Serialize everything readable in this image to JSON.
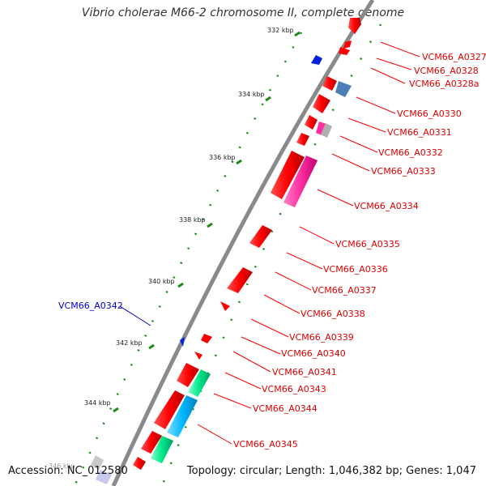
{
  "title": "Vibrio cholerae M66-2 chromosome II, complete genome",
  "accession": "Accession: NC_012580",
  "summary": "Topology: circular; Length: 1,046,382 bp; Genes: 1,047",
  "colors": {
    "backbone": "#8a8a8a",
    "forward_gene": "#ff0000",
    "reverse_gene_label": "#0000cc",
    "tick": "#1a8a1a",
    "pink": "#ff2fa0",
    "teal": "#00e88a",
    "cyan": "#00b8ff",
    "steel": "#4a7fb8",
    "grey_box": "#b0b0b0"
  },
  "scale_labels": [
    "332 kbp",
    "334 kbp",
    "336 kbp",
    "338 kbp",
    "340 kbp",
    "342 kbp",
    "344 kbp",
    "346 kbp"
  ],
  "gene_labels_right": [
    "VCM66_A0327",
    "VCM66_A0328",
    "VCM66_A0328a",
    "VCM66_A0330",
    "VCM66_A0331",
    "VCM66_A0332",
    "VCM66_A0333",
    "VCM66_A0334",
    "VCM66_A0335",
    "VCM66_A0336",
    "VCM66_A0337",
    "VCM66_A0338",
    "VCM66_A0339",
    "VCM66_A0340",
    "VCM66_A0341",
    "VCM66_A0343",
    "VCM66_A0344",
    "VCM66_A0345"
  ],
  "gene_labels_left": [
    "VCM66_A0342"
  ]
}
